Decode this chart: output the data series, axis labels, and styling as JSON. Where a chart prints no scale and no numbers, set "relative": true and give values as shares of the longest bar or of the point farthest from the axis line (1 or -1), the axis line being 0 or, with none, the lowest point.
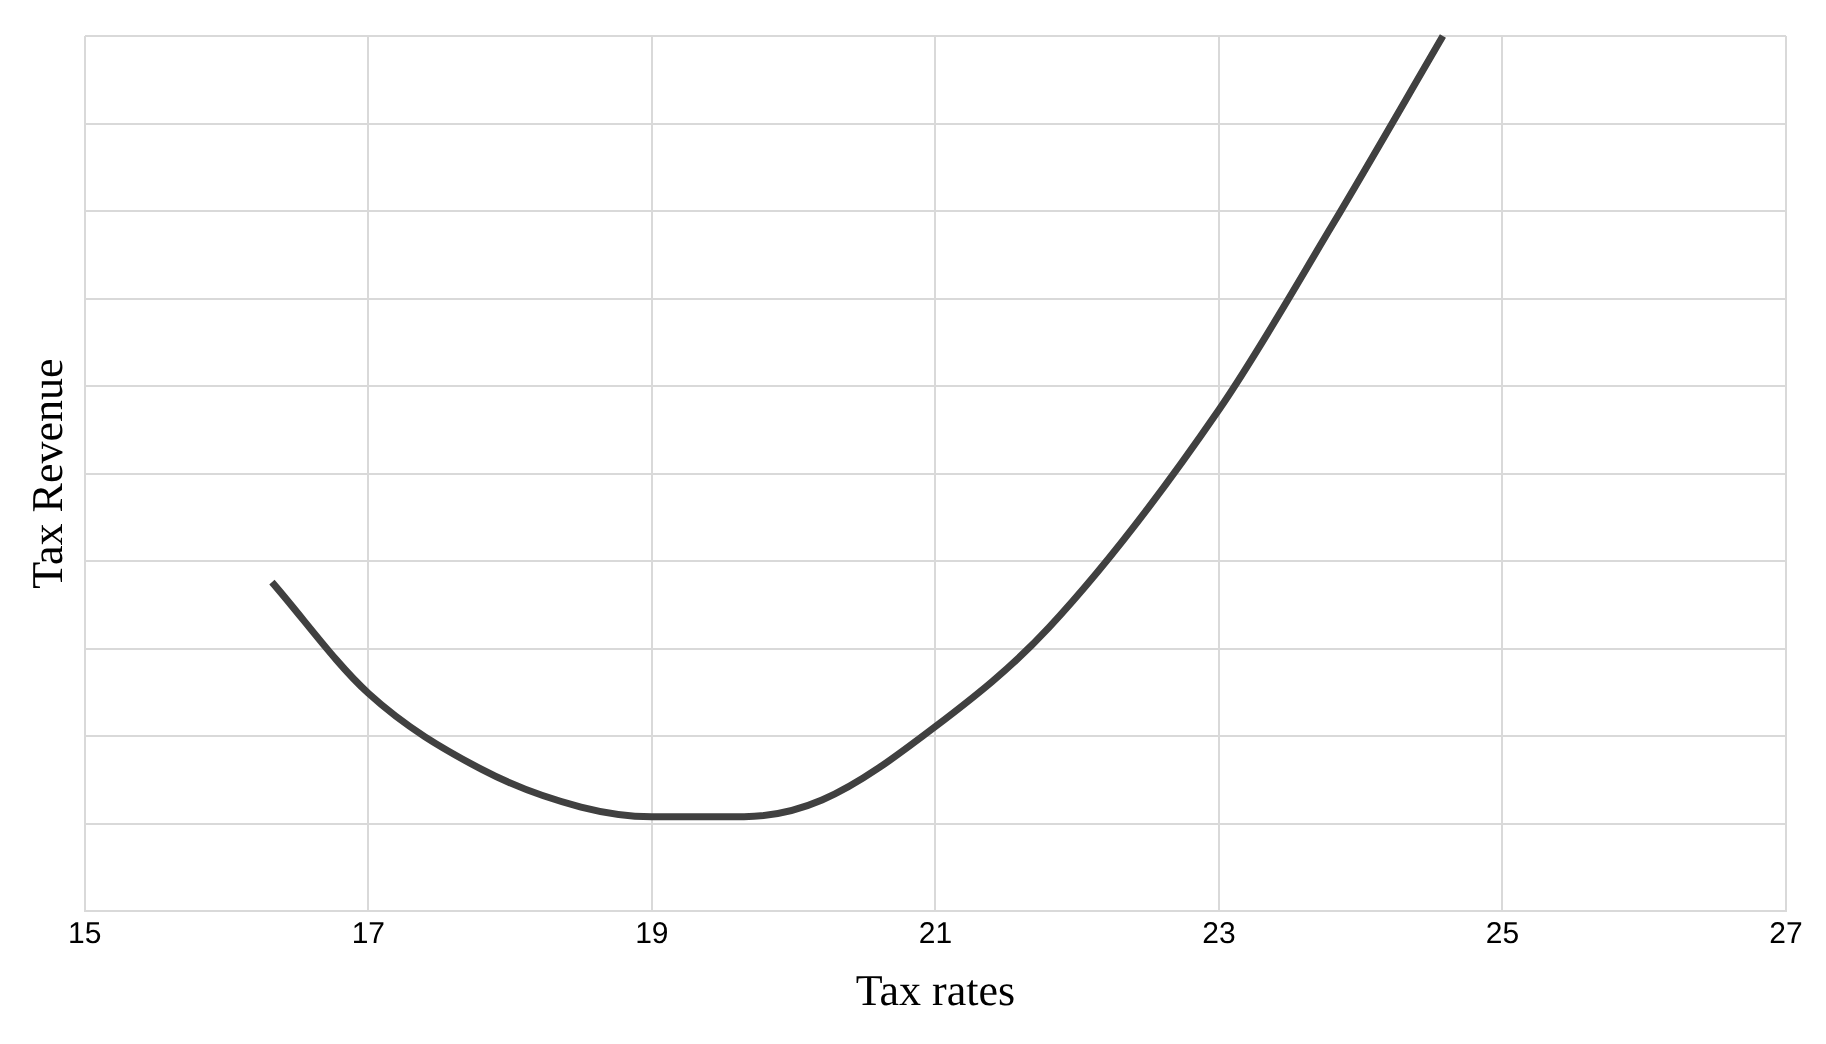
{
  "chart_data": {
    "type": "line",
    "xlabel": "Tax rates",
    "ylabel": "Tax Revenue",
    "relative": true,
    "xlim": [
      15,
      27
    ],
    "xticks": [
      15,
      17,
      19,
      21,
      23,
      25,
      27
    ],
    "grid": true,
    "legend": false,
    "marker": "none",
    "line_style": "solid",
    "series": [
      {
        "color": "#404040",
        "x": [
          16.32,
          17,
          17.8,
          18.5,
          19,
          19.65,
          20.2,
          21,
          21.8,
          23,
          23.8,
          24.58
        ],
        "values": [
          0.376,
          0.249,
          0.162,
          0.119,
          0.108,
          0.108,
          0.127,
          0.211,
          0.324,
          0.573,
          0.784,
          1
        ]
      }
    ]
  }
}
